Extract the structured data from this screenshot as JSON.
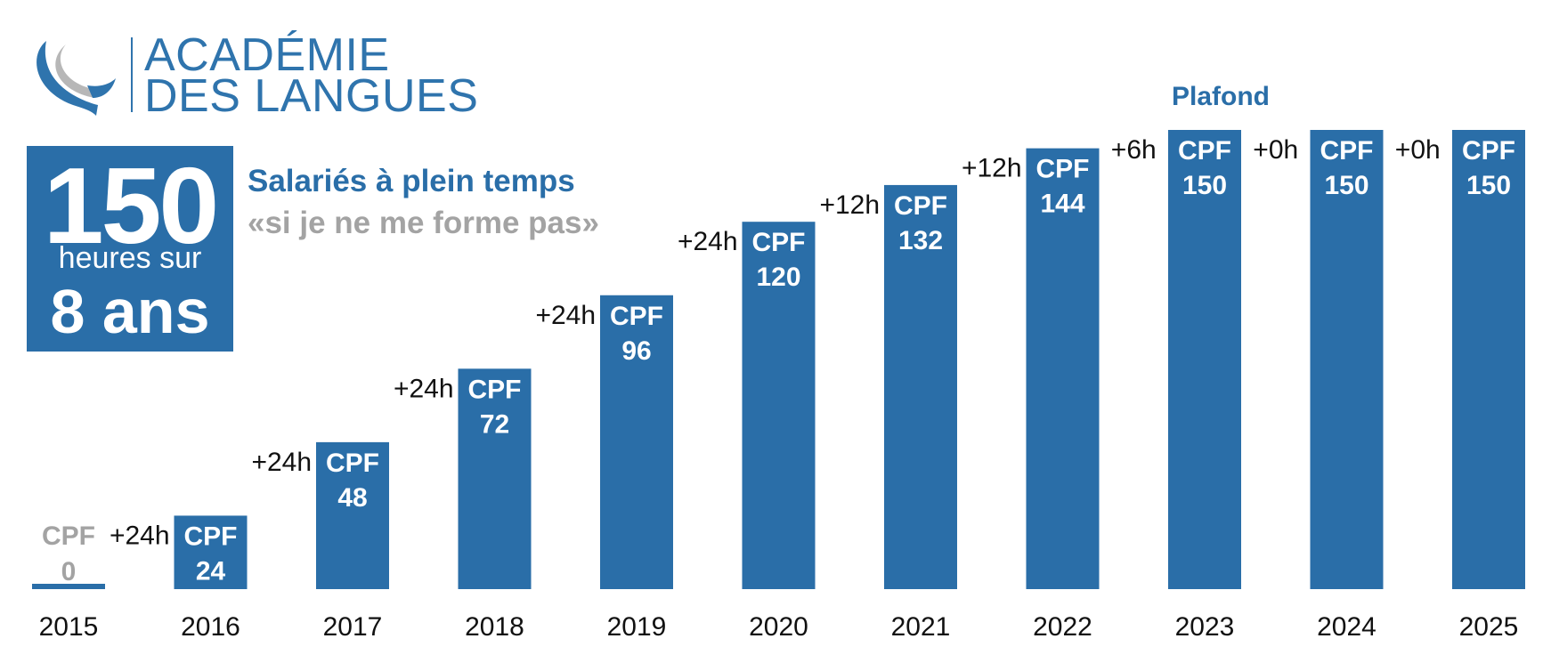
{
  "logo": {
    "line1": "ACADÉMIE",
    "line2": "DES LANGUES",
    "icon": "swoosh-logo-icon"
  },
  "badge": {
    "number": "150",
    "middle": "heures sur",
    "bottom": "8 ans"
  },
  "subtitle": "Salariés à plein temps",
  "quote": "«si je ne me forme pas»",
  "colors": {
    "primary": "#2a6ea8",
    "muted": "#a3a3a3",
    "text": "#111111"
  },
  "chart_data": {
    "type": "bar",
    "categories": [
      "2015",
      "2016",
      "2017",
      "2018",
      "2019",
      "2020",
      "2021",
      "2022",
      "2023",
      "2024",
      "2025"
    ],
    "values": [
      0,
      24,
      48,
      72,
      96,
      120,
      132,
      144,
      150,
      150,
      150
    ],
    "bar_label_prefix": "CPF",
    "increments": [
      "+24h",
      "+24h",
      "+24h",
      "+24h",
      "+24h",
      "+12h",
      "+12h",
      "+6h",
      "+0h",
      "+0h"
    ],
    "annotation": "Plafond",
    "ylim": [
      0,
      150
    ],
    "grid": false,
    "legend": "none"
  }
}
